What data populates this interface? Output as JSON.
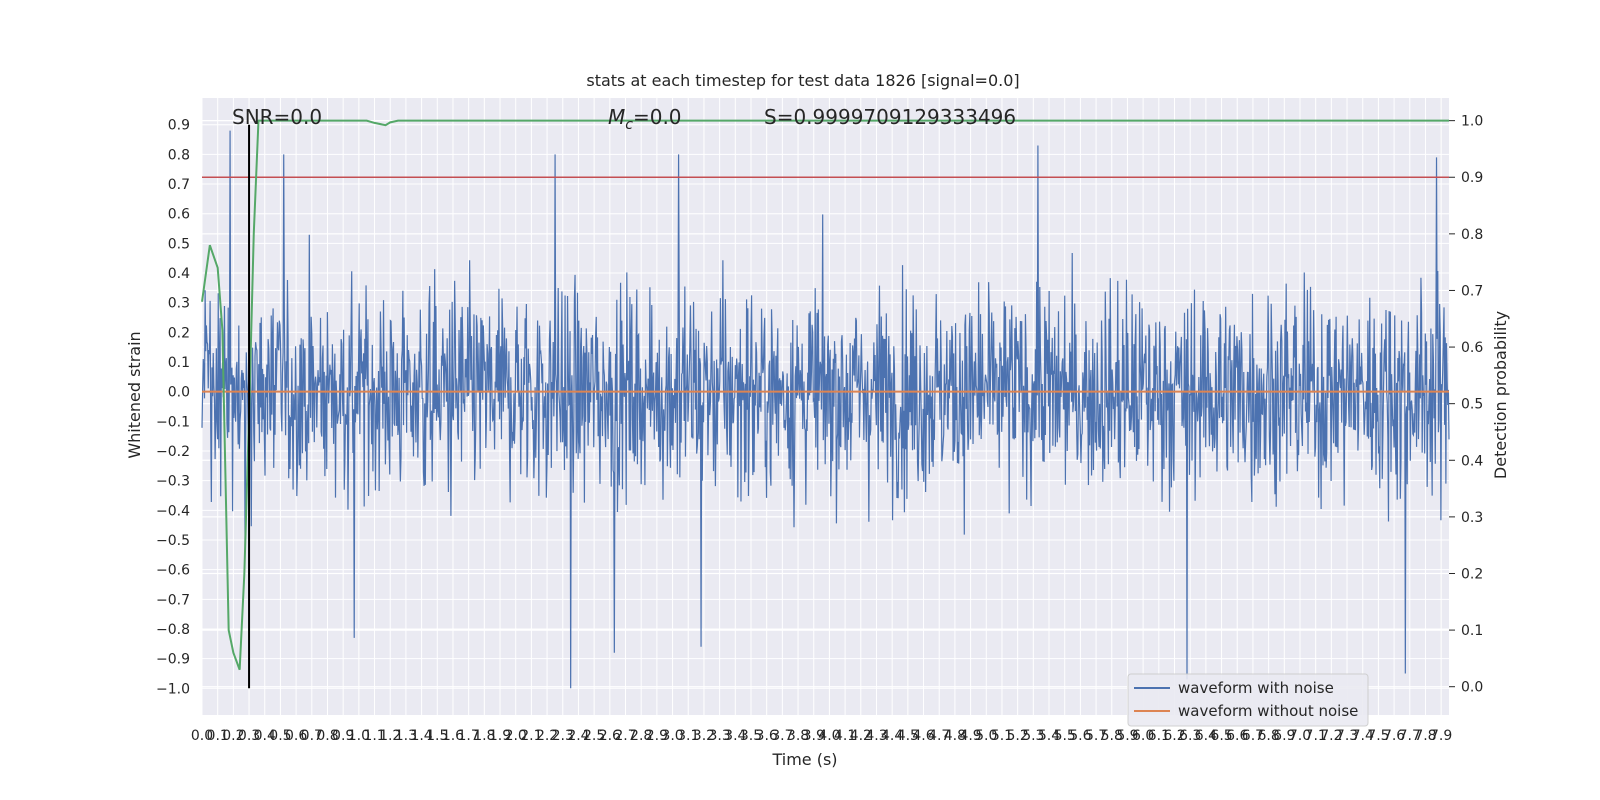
{
  "chart_data": {
    "type": "line",
    "title": "stats at each timestep for test data 1826 [signal=0.0]",
    "xlabel": "Time (s)",
    "ylabel_left": "Whitened strain",
    "ylabel_right": "Detection probability",
    "xlim": [
      0.0,
      7.95
    ],
    "ylim_left": [
      -1.09,
      0.99
    ],
    "ylim_right": [
      -0.05,
      1.04
    ],
    "x_ticks": [
      "0.0",
      "0.1",
      "0.2",
      "0.3",
      "0.4",
      "0.5",
      "0.6",
      "0.7",
      "0.8",
      "0.9",
      "1.0",
      "1.1",
      "1.2",
      "1.3",
      "1.4",
      "1.5",
      "1.6",
      "1.7",
      "1.8",
      "1.9",
      "2.0",
      "2.1",
      "2.2",
      "2.3",
      "2.4",
      "2.5",
      "2.6",
      "2.7",
      "2.8",
      "2.9",
      "3.0",
      "3.1",
      "3.2",
      "3.3",
      "3.4",
      "3.5",
      "3.6",
      "3.7",
      "3.8",
      "3.9",
      "4.0",
      "4.1",
      "4.2",
      "4.3",
      "4.4",
      "4.5",
      "4.6",
      "4.7",
      "4.8",
      "4.9",
      "5.0",
      "5.1",
      "5.2",
      "5.3",
      "5.4",
      "5.5",
      "5.6",
      "5.7",
      "5.8",
      "5.9",
      "6.0",
      "6.1",
      "6.2",
      "6.3",
      "6.4",
      "6.5",
      "6.6",
      "6.7",
      "6.8",
      "6.9",
      "7.0",
      "7.1",
      "7.2",
      "7.3",
      "7.4",
      "7.5",
      "7.6",
      "7.7",
      "7.8",
      "7.9"
    ],
    "y_ticks_left": [
      "0.9",
      "0.8",
      "0.7",
      "0.6",
      "0.5",
      "0.4",
      "0.3",
      "0.2",
      "0.1",
      "0.0",
      "−0.1",
      "−0.2",
      "−0.3",
      "−0.4",
      "−0.5",
      "−0.6",
      "−0.7",
      "−0.8",
      "−0.9",
      "−1.0"
    ],
    "y_ticks_right": [
      "1.0",
      "0.9",
      "0.8",
      "0.7",
      "0.6",
      "0.5",
      "0.4",
      "0.3",
      "0.2",
      "0.1",
      "0.0"
    ],
    "annotations": {
      "snr": "SNR=0.0",
      "mc_prefix": "M",
      "mc_sub": "c",
      "mc_suffix": "=0.0",
      "s": "S=0.9999709129333496"
    },
    "threshold": {
      "value": 0.9,
      "axis": "right",
      "color": "#c44e52"
    },
    "marker_line": {
      "x": 0.3,
      "y_from": -1.0,
      "y_to": 0.9,
      "color": "#000000"
    },
    "series": [
      {
        "name": "waveform with noise",
        "axis": "left",
        "color": "#4c72b0",
        "kind": "noise",
        "n_points": 2000,
        "typical_amplitude": 0.3,
        "peak_max": 0.88,
        "peak_min": -1.0,
        "noted_peaks": [
          [
            0.18,
            0.88
          ],
          [
            0.52,
            0.8
          ],
          [
            2.25,
            0.8
          ],
          [
            3.04,
            0.8
          ],
          [
            5.33,
            0.83
          ],
          [
            7.87,
            0.79
          ],
          [
            2.35,
            -1.0
          ],
          [
            6.28,
            -0.97
          ],
          [
            7.67,
            -0.95
          ],
          [
            2.63,
            -0.88
          ],
          [
            3.18,
            -0.86
          ],
          [
            0.97,
            -0.83
          ]
        ]
      },
      {
        "name": "waveform without noise",
        "axis": "left",
        "color": "#dd8452",
        "values_constant": 0.0
      },
      {
        "name": "Detection probability",
        "axis": "right",
        "color": "#55a868",
        "x": [
          0.0,
          0.05,
          0.1,
          0.13,
          0.17,
          0.2,
          0.24,
          0.27,
          0.3,
          0.33,
          0.36,
          0.4,
          0.6,
          1.05,
          1.1,
          1.17,
          1.2,
          1.25,
          1.35,
          7.95
        ],
        "values": [
          0.68,
          0.78,
          0.74,
          0.63,
          0.1,
          0.06,
          0.03,
          0.2,
          0.48,
          0.8,
          1.0,
          1.0,
          1.0,
          1.0,
          0.996,
          0.992,
          0.997,
          1.0,
          1.0,
          1.0
        ]
      }
    ],
    "legend": {
      "position": "lower-right",
      "entries": [
        {
          "label": "waveform with noise",
          "color": "#4c72b0"
        },
        {
          "label": "waveform without noise",
          "color": "#dd8452"
        }
      ]
    },
    "grid": true,
    "plot_background": "#eaeaf2"
  }
}
